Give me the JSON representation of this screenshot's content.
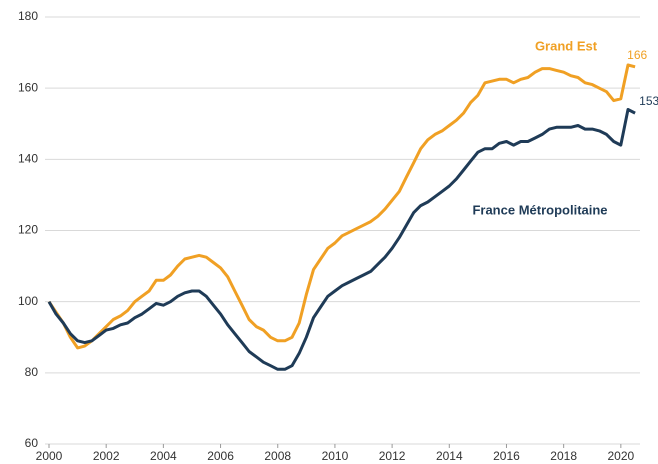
{
  "chart_data": {
    "type": "line",
    "x": [
      2000,
      2000.25,
      2000.5,
      2000.75,
      2001,
      2001.25,
      2001.5,
      2001.75,
      2002,
      2002.25,
      2002.5,
      2002.75,
      2003,
      2003.25,
      2003.5,
      2003.75,
      2004,
      2004.25,
      2004.5,
      2004.75,
      2005,
      2005.25,
      2005.5,
      2005.75,
      2006,
      2006.25,
      2006.5,
      2006.75,
      2007,
      2007.25,
      2007.5,
      2007.75,
      2008,
      2008.25,
      2008.5,
      2008.75,
      2009,
      2009.25,
      2009.5,
      2009.75,
      2010,
      2010.25,
      2010.5,
      2010.75,
      2011,
      2011.25,
      2011.5,
      2011.75,
      2012,
      2012.25,
      2012.5,
      2012.75,
      2013,
      2013.25,
      2013.5,
      2013.75,
      2014,
      2014.25,
      2014.5,
      2014.75,
      2015,
      2015.25,
      2015.5,
      2015.75,
      2016,
      2016.25,
      2016.5,
      2016.75,
      2017,
      2017.25,
      2017.5,
      2017.75,
      2018,
      2018.25,
      2018.5,
      2018.75,
      2019,
      2019.25,
      2019.5,
      2019.75,
      2020,
      2020.25,
      2020.5
    ],
    "series": [
      {
        "name": "Grand Est",
        "color": "#f0a024",
        "values": [
          100,
          97,
          94,
          90,
          87,
          87.5,
          89,
          91,
          93,
          95,
          96,
          97.5,
          100,
          101.5,
          103,
          106,
          106,
          107.5,
          110,
          112,
          112.5,
          113,
          112.5,
          111,
          109.5,
          107,
          103,
          99,
          95,
          93,
          92,
          90,
          89,
          89,
          90,
          94,
          102,
          109,
          112,
          115,
          116.5,
          118.5,
          119.5,
          120.5,
          121.5,
          122.5,
          124,
          126,
          128.5,
          131,
          135,
          139,
          143,
          145.5,
          147,
          148,
          149.5,
          151,
          153,
          156,
          158,
          161.5,
          162,
          162.5,
          162.5,
          161.5,
          162.5,
          163,
          164.5,
          165.5,
          165.5,
          165,
          164.5,
          163.5,
          163,
          161.5,
          161,
          160,
          159,
          156.5,
          157,
          166.5,
          166
        ]
      },
      {
        "name": "France Métropolitaine",
        "color": "#1f3b57",
        "values": [
          100,
          96.5,
          94,
          91,
          89,
          88.5,
          89,
          90.5,
          92,
          92.5,
          93.5,
          94,
          95.5,
          96.5,
          98,
          99.5,
          99,
          100,
          101.5,
          102.5,
          103,
          103,
          101.5,
          99,
          96.5,
          93.5,
          91,
          88.5,
          86,
          84.5,
          83,
          82,
          81,
          81,
          82,
          85.5,
          90,
          95.5,
          98.5,
          101.5,
          103,
          104.5,
          105.5,
          106.5,
          107.5,
          108.5,
          110.5,
          112.5,
          115,
          118,
          121.5,
          125,
          127,
          128,
          129.5,
          131,
          132.5,
          134.5,
          137,
          139.5,
          142,
          143,
          143,
          144.5,
          145,
          144,
          145,
          145,
          146,
          147,
          148.5,
          149,
          149,
          149,
          149.5,
          148.5,
          148.5,
          148,
          147,
          145,
          144,
          154,
          153
        ]
      }
    ],
    "xlim": [
      2000,
      2020.6
    ],
    "xticks": [
      2000,
      2002,
      2004,
      2006,
      2008,
      2010,
      2012,
      2014,
      2016,
      2018,
      2020
    ],
    "ylim": [
      60,
      180
    ],
    "yticks": [
      60,
      80,
      100,
      120,
      140,
      160,
      180
    ],
    "grid": true
  }
}
